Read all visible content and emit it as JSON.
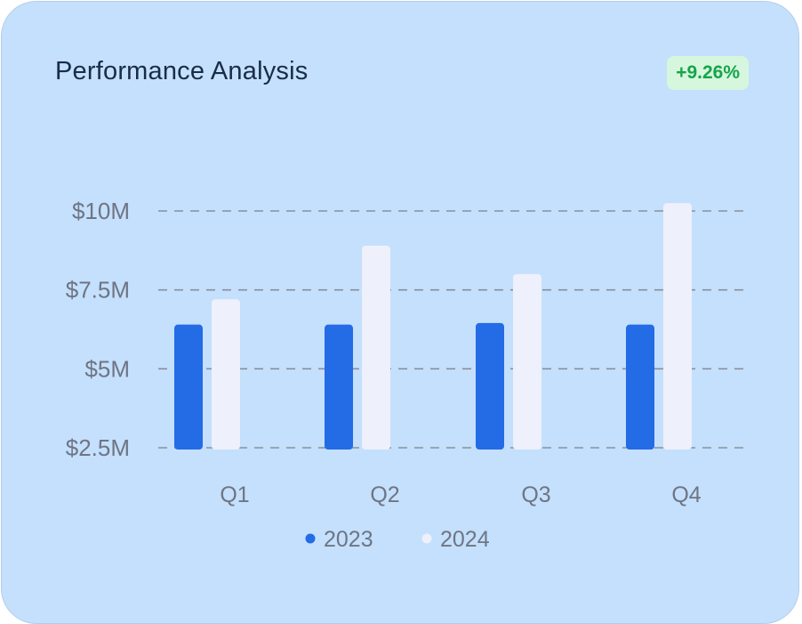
{
  "header": {
    "title": "Performance Analysis",
    "change_badge": "+9.26%"
  },
  "colors": {
    "series_2023": "#246be6",
    "series_2024": "#eef0fb",
    "grid": "#8a8f9c",
    "badge_text": "#17a44a",
    "badge_bg": "#d6f7de"
  },
  "chart_data": {
    "type": "bar",
    "title": "Performance Analysis",
    "categories": [
      "Q1",
      "Q2",
      "Q3",
      "Q4"
    ],
    "series": [
      {
        "name": "2023",
        "values": [
          6.4,
          6.4,
          6.45,
          6.4
        ]
      },
      {
        "name": "2024",
        "values": [
          7.2,
          8.9,
          8.0,
          10.25
        ]
      }
    ],
    "y_ticks": [
      2.5,
      5,
      7.5,
      10
    ],
    "y_tick_labels": [
      "$2.5M",
      "$5M",
      "$7.5M",
      "$10M"
    ],
    "ylim": [
      2.5,
      10
    ],
    "grid": "horizontal dashed",
    "legend": "bottom-center"
  }
}
